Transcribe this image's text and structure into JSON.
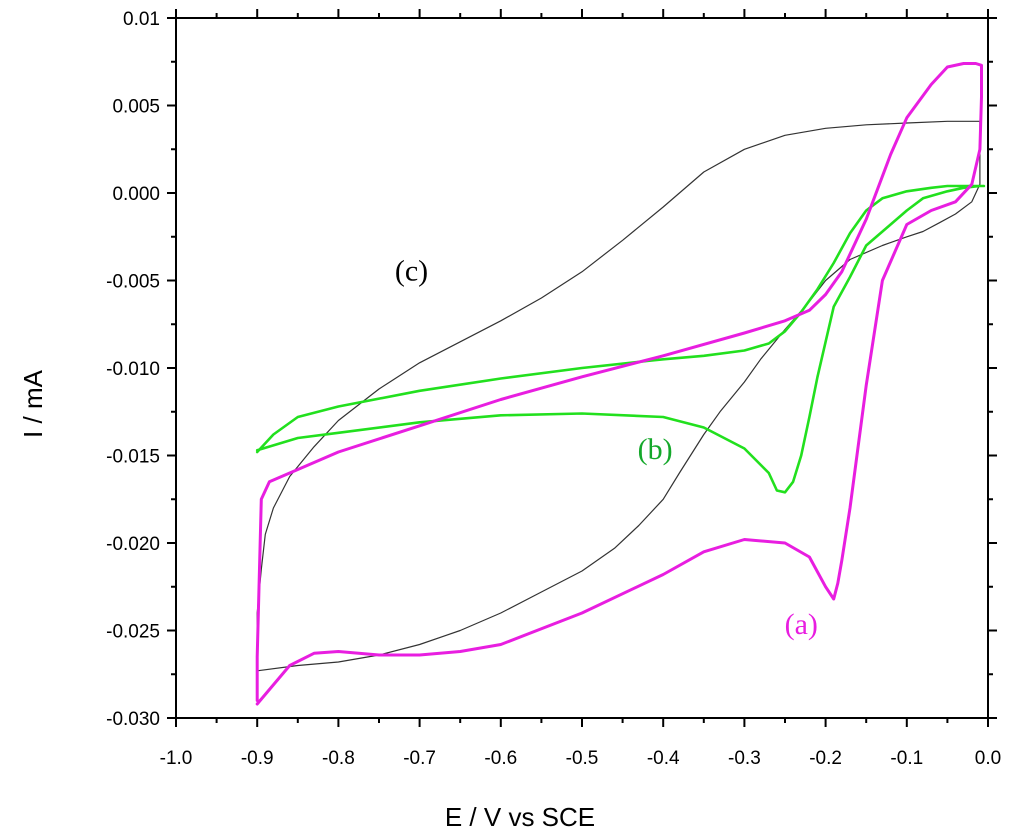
{
  "chart_data": {
    "type": "line",
    "title": "",
    "xlabel": "E / V vs SCE",
    "ylabel": "I / mA",
    "xlim": [
      -1.0,
      0.0
    ],
    "ylim": [
      -0.03,
      0.01
    ],
    "x_ticks": [
      -1.0,
      -0.9,
      -0.8,
      -0.7,
      -0.6,
      -0.5,
      -0.4,
      -0.3,
      -0.2,
      -0.1,
      0.0
    ],
    "x_tick_labels": [
      "-1.0",
      "-0.9",
      "-0.8",
      "-0.7",
      "-0.6",
      "-0.5",
      "-0.4",
      "-0.3",
      "-0.2",
      "-0.1",
      "0.0"
    ],
    "y_ticks": [
      -0.03,
      -0.025,
      -0.02,
      -0.015,
      -0.01,
      -0.005,
      0.0,
      0.005,
      0.01
    ],
    "y_tick_labels": [
      "-0.030",
      "-0.025",
      "-0.020",
      "-0.015",
      "-0.010",
      "-0.005",
      "0.000",
      "0.005",
      "0.01"
    ],
    "grid": false,
    "series": [
      {
        "name": "(a)",
        "color": "#e81ee0",
        "x": [
          -0.9,
          -0.9,
          -0.895,
          -0.885,
          -0.86,
          -0.8,
          -0.7,
          -0.6,
          -0.5,
          -0.4,
          -0.3,
          -0.25,
          -0.22,
          -0.2,
          -0.18,
          -0.15,
          -0.12,
          -0.1,
          -0.07,
          -0.05,
          -0.03,
          -0.015,
          -0.008,
          -0.008,
          -0.01,
          -0.02,
          -0.04,
          -0.07,
          -0.1,
          -0.13,
          -0.15,
          -0.17,
          -0.18,
          -0.185,
          -0.19,
          -0.2,
          -0.22,
          -0.25,
          -0.3,
          -0.35,
          -0.4,
          -0.5,
          -0.6,
          -0.65,
          -0.7,
          -0.75,
          -0.8,
          -0.83,
          -0.86,
          -0.9
        ],
        "y": [
          -0.029,
          -0.0265,
          -0.0175,
          -0.0165,
          -0.016,
          -0.0148,
          -0.0133,
          -0.0118,
          -0.0105,
          -0.0093,
          -0.008,
          -0.0073,
          -0.0067,
          -0.0058,
          -0.0045,
          -0.0015,
          0.0022,
          0.0043,
          0.0062,
          0.0072,
          0.0074,
          0.0074,
          0.0073,
          0.0055,
          0.0025,
          0.0005,
          -0.0005,
          -0.001,
          -0.0018,
          -0.005,
          -0.011,
          -0.018,
          -0.021,
          -0.0223,
          -0.0232,
          -0.0225,
          -0.0208,
          -0.02,
          -0.0198,
          -0.0205,
          -0.0218,
          -0.024,
          -0.0258,
          -0.0262,
          -0.0264,
          -0.0264,
          -0.0262,
          -0.0263,
          -0.027,
          -0.0292
        ]
      },
      {
        "name": "(b)",
        "color": "#22e01e",
        "x": [
          -0.9,
          -0.88,
          -0.85,
          -0.8,
          -0.7,
          -0.6,
          -0.5,
          -0.42,
          -0.4,
          -0.35,
          -0.3,
          -0.27,
          -0.25,
          -0.23,
          -0.21,
          -0.19,
          -0.17,
          -0.15,
          -0.13,
          -0.1,
          -0.07,
          -0.05,
          -0.03,
          -0.01,
          -0.005,
          -0.01,
          -0.03,
          -0.05,
          -0.08,
          -0.1,
          -0.12,
          -0.15,
          -0.17,
          -0.19,
          -0.2,
          -0.21,
          -0.22,
          -0.23,
          -0.24,
          -0.25,
          -0.26,
          -0.27,
          -0.3,
          -0.35,
          -0.4,
          -0.5,
          -0.6,
          -0.7,
          -0.8,
          -0.85,
          -0.9
        ],
        "y": [
          -0.0148,
          -0.0138,
          -0.0128,
          -0.0122,
          -0.0113,
          -0.0106,
          -0.01,
          -0.0096,
          -0.0095,
          -0.0093,
          -0.009,
          -0.0086,
          -0.0079,
          -0.0068,
          -0.0055,
          -0.004,
          -0.0023,
          -0.001,
          -0.0003,
          0.0001,
          0.0003,
          0.0004,
          0.0004,
          0.0004,
          0.0004,
          0.0004,
          0.0003,
          0.0001,
          -0.0003,
          -0.001,
          -0.0018,
          -0.003,
          -0.0048,
          -0.0065,
          -0.0085,
          -0.0105,
          -0.0128,
          -0.015,
          -0.0165,
          -0.0171,
          -0.017,
          -0.016,
          -0.0146,
          -0.0134,
          -0.0128,
          -0.0126,
          -0.0127,
          -0.0131,
          -0.0137,
          -0.014,
          -0.0147
        ]
      },
      {
        "name": "(c)",
        "color": "#333333",
        "x": [
          -0.9,
          -0.9,
          -0.895,
          -0.89,
          -0.88,
          -0.86,
          -0.83,
          -0.8,
          -0.75,
          -0.7,
          -0.65,
          -0.6,
          -0.55,
          -0.5,
          -0.45,
          -0.4,
          -0.35,
          -0.3,
          -0.25,
          -0.2,
          -0.15,
          -0.1,
          -0.05,
          -0.01,
          -0.01,
          -0.02,
          -0.04,
          -0.06,
          -0.08,
          -0.1,
          -0.13,
          -0.17,
          -0.2,
          -0.22,
          -0.25,
          -0.28,
          -0.3,
          -0.33,
          -0.35,
          -0.38,
          -0.4,
          -0.43,
          -0.46,
          -0.5,
          -0.55,
          -0.6,
          -0.65,
          -0.7,
          -0.75,
          -0.8,
          -0.85,
          -0.9
        ],
        "y": [
          -0.0273,
          -0.024,
          -0.0215,
          -0.0195,
          -0.018,
          -0.0162,
          -0.0145,
          -0.013,
          -0.0112,
          -0.0097,
          -0.0085,
          -0.0073,
          -0.006,
          -0.0045,
          -0.0027,
          -0.0008,
          0.0012,
          0.0025,
          0.0033,
          0.0037,
          0.0039,
          0.004,
          0.0041,
          0.0041,
          0.0005,
          -0.0005,
          -0.0012,
          -0.0017,
          -0.0022,
          -0.0025,
          -0.003,
          -0.0038,
          -0.005,
          -0.0062,
          -0.0078,
          -0.0095,
          -0.0108,
          -0.0125,
          -0.0138,
          -0.016,
          -0.0175,
          -0.019,
          -0.0203,
          -0.0216,
          -0.0228,
          -0.024,
          -0.025,
          -0.0258,
          -0.0264,
          -0.0268,
          -0.027,
          -0.0273
        ]
      }
    ],
    "annotations": [
      {
        "text": "(c)",
        "x": -0.71,
        "y": -0.005,
        "color": "#000000"
      },
      {
        "text": "(b)",
        "x": -0.41,
        "y": -0.0152,
        "color": "#14a82a"
      },
      {
        "text": "(a)",
        "x": -0.23,
        "y": -0.0252,
        "color": "#e81ee0"
      }
    ]
  }
}
